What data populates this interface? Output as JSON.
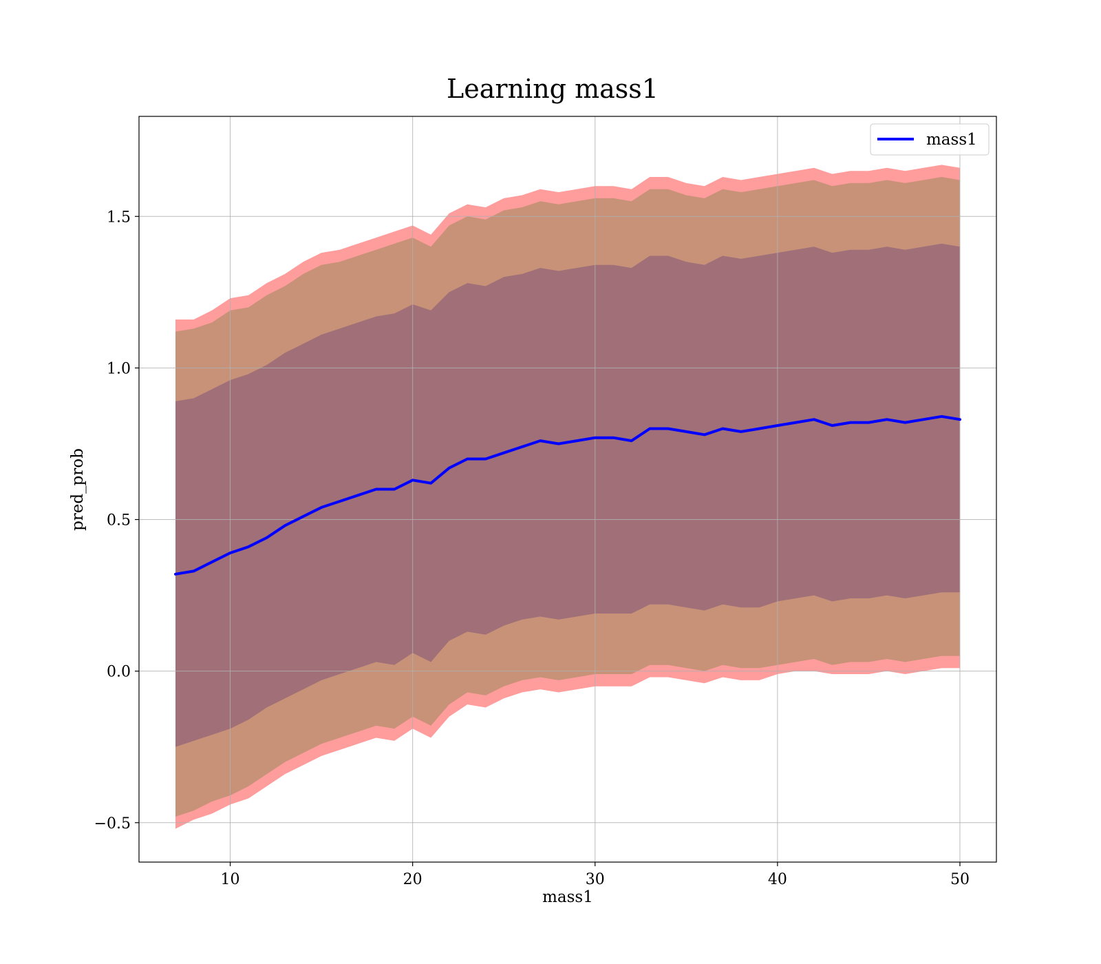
{
  "chart_data": {
    "type": "line",
    "title": "Learning mass1",
    "xlabel": "mass1",
    "ylabel": "pred_prob",
    "xlim": [
      5,
      52
    ],
    "ylim": [
      -0.63,
      1.83
    ],
    "x_ticks": [
      10,
      20,
      30,
      40,
      50
    ],
    "x_tick_labels": [
      "10",
      "20",
      "30",
      "40",
      "50"
    ],
    "y_ticks": [
      -0.5,
      0.0,
      0.5,
      1.0,
      1.5
    ],
    "y_tick_labels": [
      "−0.5",
      "0.0",
      "0.5",
      "1.0",
      "1.5"
    ],
    "grid": true,
    "legend": {
      "position": "top-right",
      "entries": [
        "mass1"
      ]
    },
    "colors": {
      "line": "#0000ff",
      "band_outer": "#ff9c9c",
      "band_middle": "#c79278",
      "band_inner": "#a06f78",
      "grid": "#b0b0b0"
    },
    "x": [
      7,
      8,
      9,
      10,
      11,
      12,
      13,
      14,
      15,
      16,
      17,
      18,
      19,
      20,
      21,
      22,
      23,
      24,
      25,
      26,
      27,
      28,
      29,
      30,
      31,
      32,
      33,
      34,
      35,
      36,
      37,
      38,
      39,
      40,
      41,
      42,
      43,
      44,
      45,
      46,
      47,
      48,
      49,
      50
    ],
    "series": [
      {
        "name": "mass1",
        "values": [
          0.32,
          0.33,
          0.36,
          0.39,
          0.41,
          0.44,
          0.48,
          0.51,
          0.54,
          0.56,
          0.58,
          0.6,
          0.6,
          0.63,
          0.62,
          0.67,
          0.7,
          0.7,
          0.72,
          0.74,
          0.76,
          0.75,
          0.76,
          0.77,
          0.77,
          0.76,
          0.8,
          0.8,
          0.79,
          0.78,
          0.8,
          0.79,
          0.8,
          0.81,
          0.82,
          0.83,
          0.81,
          0.82,
          0.82,
          0.83,
          0.82,
          0.83,
          0.84,
          0.83
        ]
      }
    ],
    "bands": [
      {
        "level": "outer",
        "lower": [
          -0.52,
          -0.49,
          -0.47,
          -0.44,
          -0.42,
          -0.38,
          -0.34,
          -0.31,
          -0.28,
          -0.26,
          -0.24,
          -0.22,
          -0.23,
          -0.19,
          -0.22,
          -0.15,
          -0.11,
          -0.12,
          -0.09,
          -0.07,
          -0.06,
          -0.07,
          -0.06,
          -0.05,
          -0.05,
          -0.05,
          -0.02,
          -0.02,
          -0.03,
          -0.04,
          -0.02,
          -0.03,
          -0.03,
          -0.01,
          0.0,
          0.0,
          -0.01,
          -0.01,
          -0.01,
          0.0,
          -0.01,
          0.0,
          0.01,
          0.01
        ],
        "upper": [
          1.16,
          1.16,
          1.19,
          1.23,
          1.24,
          1.28,
          1.31,
          1.35,
          1.38,
          1.39,
          1.41,
          1.43,
          1.45,
          1.47,
          1.44,
          1.51,
          1.54,
          1.53,
          1.56,
          1.57,
          1.59,
          1.58,
          1.59,
          1.6,
          1.6,
          1.59,
          1.63,
          1.63,
          1.61,
          1.6,
          1.63,
          1.62,
          1.63,
          1.64,
          1.65,
          1.66,
          1.64,
          1.65,
          1.65,
          1.66,
          1.65,
          1.66,
          1.67,
          1.66
        ]
      },
      {
        "level": "middle",
        "lower": [
          -0.48,
          -0.46,
          -0.43,
          -0.41,
          -0.38,
          -0.34,
          -0.3,
          -0.27,
          -0.24,
          -0.22,
          -0.2,
          -0.18,
          -0.19,
          -0.15,
          -0.18,
          -0.11,
          -0.07,
          -0.08,
          -0.05,
          -0.03,
          -0.02,
          -0.03,
          -0.02,
          -0.01,
          -0.01,
          -0.01,
          0.02,
          0.02,
          0.01,
          0.0,
          0.02,
          0.01,
          0.01,
          0.02,
          0.03,
          0.04,
          0.02,
          0.03,
          0.03,
          0.04,
          0.03,
          0.04,
          0.05,
          0.05
        ],
        "upper": [
          1.12,
          1.13,
          1.15,
          1.19,
          1.2,
          1.24,
          1.27,
          1.31,
          1.34,
          1.35,
          1.37,
          1.39,
          1.41,
          1.43,
          1.4,
          1.47,
          1.5,
          1.49,
          1.52,
          1.53,
          1.55,
          1.54,
          1.55,
          1.56,
          1.56,
          1.55,
          1.59,
          1.59,
          1.57,
          1.56,
          1.59,
          1.58,
          1.59,
          1.6,
          1.61,
          1.62,
          1.6,
          1.61,
          1.61,
          1.62,
          1.61,
          1.62,
          1.63,
          1.62
        ]
      },
      {
        "level": "inner",
        "lower": [
          -0.25,
          -0.23,
          -0.21,
          -0.19,
          -0.16,
          -0.12,
          -0.09,
          -0.06,
          -0.03,
          -0.01,
          0.01,
          0.03,
          0.02,
          0.06,
          0.03,
          0.1,
          0.13,
          0.12,
          0.15,
          0.17,
          0.18,
          0.17,
          0.18,
          0.19,
          0.19,
          0.19,
          0.22,
          0.22,
          0.21,
          0.2,
          0.22,
          0.21,
          0.21,
          0.23,
          0.24,
          0.25,
          0.23,
          0.24,
          0.24,
          0.25,
          0.24,
          0.25,
          0.26,
          0.26
        ],
        "upper": [
          0.89,
          0.9,
          0.93,
          0.96,
          0.98,
          1.01,
          1.05,
          1.08,
          1.11,
          1.13,
          1.15,
          1.17,
          1.18,
          1.21,
          1.19,
          1.25,
          1.28,
          1.27,
          1.3,
          1.31,
          1.33,
          1.32,
          1.33,
          1.34,
          1.34,
          1.33,
          1.37,
          1.37,
          1.35,
          1.34,
          1.37,
          1.36,
          1.37,
          1.38,
          1.39,
          1.4,
          1.38,
          1.39,
          1.39,
          1.4,
          1.39,
          1.4,
          1.41,
          1.4
        ]
      }
    ]
  }
}
